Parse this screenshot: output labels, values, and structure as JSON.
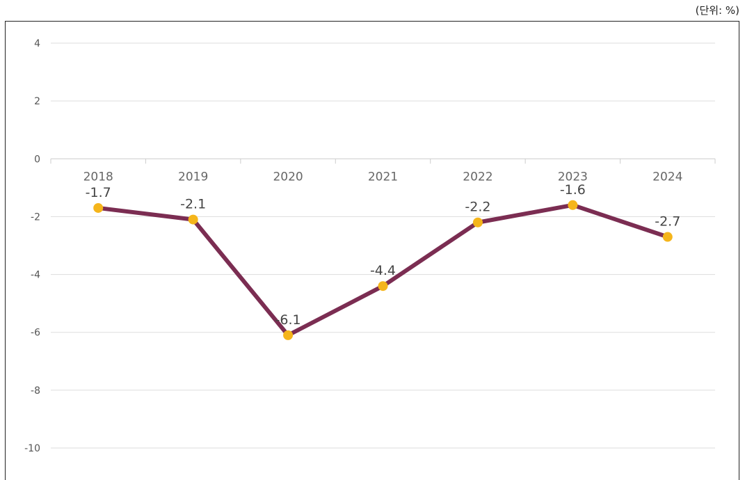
{
  "unit_label": "(단위: %)",
  "colors": {
    "line": "#7B2D52",
    "marker": "#F5B51B",
    "grid": "#DDDDDD",
    "axis": "#CCCCCC"
  },
  "chart_data": {
    "type": "line",
    "title": "",
    "xlabel": "",
    "ylabel": "",
    "categories": [
      "2018",
      "2019",
      "2020",
      "2021",
      "2022",
      "2023",
      "2024"
    ],
    "series": [
      {
        "values": [
          -1.7,
          -2.1,
          -6.1,
          -4.4,
          -2.2,
          -1.6,
          -2.7
        ],
        "labels": [
          "-1.7",
          "-2.1",
          "-6.1",
          "-4.4",
          "-2.2",
          "-1.6",
          "-2.7"
        ]
      }
    ],
    "yticks": [
      4,
      2,
      0,
      -2,
      -4,
      -6,
      -8,
      -10
    ],
    "ylim": [
      -10,
      4
    ],
    "grid": true,
    "legend": "none"
  }
}
